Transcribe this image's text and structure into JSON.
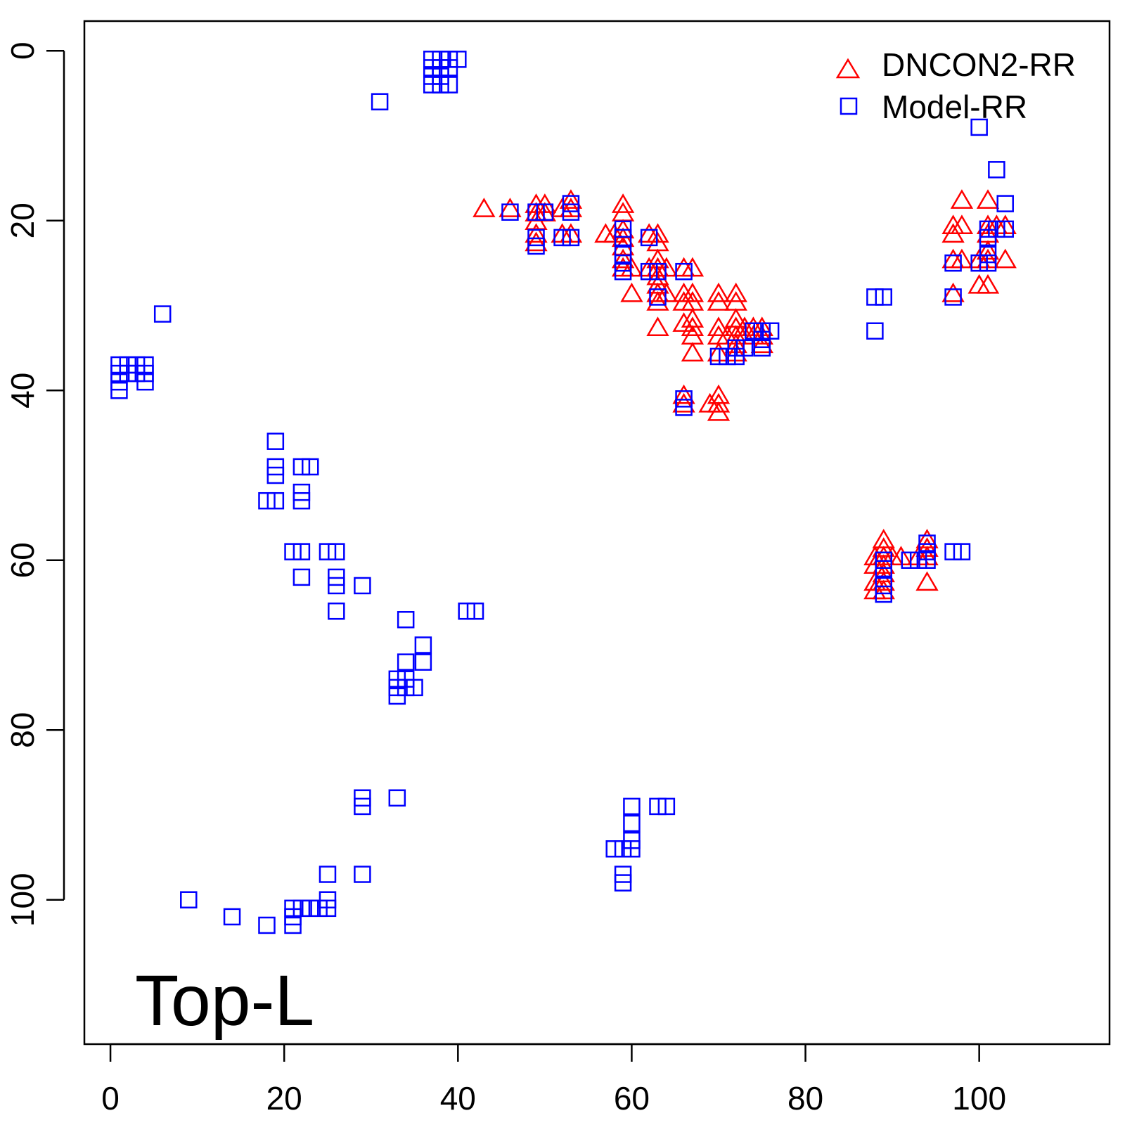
{
  "chart_data": {
    "type": "scatter",
    "annotation": "Top-L",
    "xlim": [
      -3,
      115
    ],
    "ylim": [
      -3.5,
      117
    ],
    "y_axis_inverted": true,
    "x_ticks": [
      0,
      20,
      40,
      60,
      80,
      100
    ],
    "y_ticks": [
      0,
      20,
      40,
      60,
      80,
      100
    ],
    "x_tick_labels": [
      "0",
      "20",
      "40",
      "60",
      "80",
      "100"
    ],
    "y_tick_labels": [
      "0",
      "20",
      "40",
      "60",
      "80",
      "100"
    ],
    "grid": false,
    "legend_position": "top-right",
    "series": [
      {
        "name": "DNCON2-RR",
        "marker": "triangle",
        "color": "#ff0000",
        "points": [
          [
            43,
            18.5
          ],
          [
            46,
            18.5
          ],
          [
            49,
            18
          ],
          [
            49,
            19
          ],
          [
            49,
            20
          ],
          [
            49,
            21.5
          ],
          [
            49,
            22.5
          ],
          [
            50,
            18
          ],
          [
            50,
            19
          ],
          [
            52,
            18.5
          ],
          [
            52,
            21.5
          ],
          [
            53,
            17.5
          ],
          [
            53,
            18.5
          ],
          [
            53,
            21.5
          ],
          [
            57,
            21.5
          ],
          [
            58,
            21.5
          ],
          [
            59,
            18
          ],
          [
            59,
            19
          ],
          [
            59,
            21
          ],
          [
            59,
            22
          ],
          [
            59,
            23
          ],
          [
            59,
            24.5
          ],
          [
            59,
            25.5
          ],
          [
            60,
            25.5
          ],
          [
            60,
            28.5
          ],
          [
            62,
            21.5
          ],
          [
            62,
            25.5
          ],
          [
            63,
            21.5
          ],
          [
            63,
            22.5
          ],
          [
            63,
            24.5
          ],
          [
            63,
            25.5
          ],
          [
            63,
            26.5
          ],
          [
            63,
            27.5
          ],
          [
            63,
            28.5
          ],
          [
            63,
            29.5
          ],
          [
            63,
            32.5
          ],
          [
            64,
            25.5
          ],
          [
            64,
            28.5
          ],
          [
            66,
            25.5
          ],
          [
            66,
            28.5
          ],
          [
            66,
            29.5
          ],
          [
            66,
            32
          ],
          [
            66,
            40.5
          ],
          [
            66,
            41.5
          ],
          [
            67,
            25.5
          ],
          [
            67,
            28.5
          ],
          [
            67,
            29.5
          ],
          [
            67,
            31.5
          ],
          [
            67,
            32.5
          ],
          [
            67,
            33.5
          ],
          [
            67,
            35.5
          ],
          [
            69,
            41.5
          ],
          [
            70,
            28.5
          ],
          [
            70,
            29.5
          ],
          [
            70,
            32.5
          ],
          [
            70,
            33.5
          ],
          [
            70,
            35.5
          ],
          [
            70,
            40.5
          ],
          [
            70,
            41.5
          ],
          [
            70,
            42.5
          ],
          [
            71,
            33.5
          ],
          [
            72,
            28.5
          ],
          [
            72,
            29.5
          ],
          [
            72,
            31.5
          ],
          [
            72,
            32.5
          ],
          [
            72,
            33.5
          ],
          [
            72,
            34.5
          ],
          [
            72,
            35.5
          ],
          [
            73,
            32.5
          ],
          [
            73,
            33.5
          ],
          [
            74,
            32.5
          ],
          [
            74,
            33.5
          ],
          [
            75,
            32.5
          ],
          [
            75,
            33.5
          ],
          [
            75,
            34.5
          ],
          [
            88,
            59.5
          ],
          [
            88,
            60.5
          ],
          [
            88,
            62.5
          ],
          [
            88,
            63.5
          ],
          [
            89,
            57.5
          ],
          [
            89,
            58.5
          ],
          [
            89,
            59.5
          ],
          [
            89,
            60.5
          ],
          [
            89,
            61.5
          ],
          [
            89,
            62.5
          ],
          [
            89,
            63.5
          ],
          [
            90,
            59.5
          ],
          [
            91,
            59.5
          ],
          [
            93,
            59.5
          ],
          [
            94,
            57.5
          ],
          [
            94,
            58.5
          ],
          [
            94,
            59.5
          ],
          [
            94,
            62.5
          ],
          [
            97,
            20.5
          ],
          [
            97,
            21.5
          ],
          [
            97,
            24.5
          ],
          [
            97,
            28.5
          ],
          [
            98,
            17.5
          ],
          [
            98,
            20.5
          ],
          [
            98,
            24.5
          ],
          [
            100,
            24.5
          ],
          [
            100,
            27.5
          ],
          [
            101,
            17.5
          ],
          [
            101,
            20.5
          ],
          [
            101,
            21.5
          ],
          [
            101,
            23.5
          ],
          [
            101,
            24.5
          ],
          [
            101,
            27.5
          ],
          [
            102,
            20.5
          ],
          [
            103,
            20.5
          ],
          [
            103,
            24.5
          ]
        ]
      },
      {
        "name": "Model-RR",
        "marker": "square",
        "color": "#0000ff",
        "points": [
          [
            37,
            1
          ],
          [
            37,
            2
          ],
          [
            37,
            3
          ],
          [
            37,
            4
          ],
          [
            38,
            1
          ],
          [
            38,
            2
          ],
          [
            38,
            3
          ],
          [
            38,
            4
          ],
          [
            39,
            1
          ],
          [
            39,
            2
          ],
          [
            39,
            4
          ],
          [
            40,
            1
          ],
          [
            31,
            6
          ],
          [
            1,
            37
          ],
          [
            1,
            38
          ],
          [
            1,
            39
          ],
          [
            1,
            40
          ],
          [
            2,
            37
          ],
          [
            2,
            38
          ],
          [
            3,
            37
          ],
          [
            3,
            38
          ],
          [
            4,
            37
          ],
          [
            4,
            38
          ],
          [
            4,
            39
          ],
          [
            6,
            31
          ],
          [
            19,
            46
          ],
          [
            19,
            49
          ],
          [
            19,
            50
          ],
          [
            18,
            53
          ],
          [
            19,
            53
          ],
          [
            22,
            49
          ],
          [
            23,
            49
          ],
          [
            22,
            52
          ],
          [
            22,
            53
          ],
          [
            21,
            59
          ],
          [
            22,
            59
          ],
          [
            22,
            62
          ],
          [
            25,
            59
          ],
          [
            26,
            59
          ],
          [
            26,
            62
          ],
          [
            26,
            63
          ],
          [
            26,
            66
          ],
          [
            29,
            63
          ],
          [
            34,
            67
          ],
          [
            36,
            70
          ],
          [
            34,
            72
          ],
          [
            36,
            72
          ],
          [
            33,
            74
          ],
          [
            34,
            74
          ],
          [
            33,
            75
          ],
          [
            34,
            75
          ],
          [
            35,
            75
          ],
          [
            33,
            76
          ],
          [
            41,
            66
          ],
          [
            42,
            66
          ],
          [
            29,
            88
          ],
          [
            29,
            89
          ],
          [
            33,
            88
          ],
          [
            29,
            97
          ],
          [
            25,
            97
          ],
          [
            25,
            100
          ],
          [
            25,
            101
          ],
          [
            24,
            101
          ],
          [
            23,
            101
          ],
          [
            22,
            101
          ],
          [
            21,
            101
          ],
          [
            21,
            102
          ],
          [
            21,
            103
          ],
          [
            18,
            103
          ],
          [
            14,
            102
          ],
          [
            9,
            100
          ],
          [
            60,
            89
          ],
          [
            60,
            91
          ],
          [
            60,
            93
          ],
          [
            60,
            94
          ],
          [
            59,
            94
          ],
          [
            58,
            94
          ],
          [
            59,
            97
          ],
          [
            59,
            98
          ],
          [
            63,
            89
          ],
          [
            64,
            89
          ],
          [
            46,
            19
          ],
          [
            49,
            19
          ],
          [
            49,
            22
          ],
          [
            49,
            23
          ],
          [
            50,
            19
          ],
          [
            52,
            22
          ],
          [
            53,
            18
          ],
          [
            53,
            19
          ],
          [
            53,
            22
          ],
          [
            59,
            21
          ],
          [
            59,
            22
          ],
          [
            59,
            24
          ],
          [
            59,
            25
          ],
          [
            59,
            26
          ],
          [
            62,
            22
          ],
          [
            62,
            26
          ],
          [
            63,
            26
          ],
          [
            63,
            29
          ],
          [
            66,
            26
          ],
          [
            66,
            41
          ],
          [
            66,
            42
          ],
          [
            70,
            36
          ],
          [
            71,
            36
          ],
          [
            72,
            36
          ],
          [
            72,
            35
          ],
          [
            73,
            35
          ],
          [
            74,
            33
          ],
          [
            75,
            33
          ],
          [
            75,
            34
          ],
          [
            75,
            35
          ],
          [
            76,
            33
          ],
          [
            88,
            29
          ],
          [
            89,
            29
          ],
          [
            88,
            33
          ],
          [
            89,
            60
          ],
          [
            89,
            61
          ],
          [
            89,
            63
          ],
          [
            89,
            64
          ],
          [
            92,
            60
          ],
          [
            93,
            60
          ],
          [
            94,
            58
          ],
          [
            94,
            59
          ],
          [
            94,
            60
          ],
          [
            97,
            59
          ],
          [
            98,
            59
          ],
          [
            100,
            9
          ],
          [
            102,
            14
          ],
          [
            103,
            18
          ],
          [
            97,
            25
          ],
          [
            97,
            29
          ],
          [
            100,
            25
          ],
          [
            101,
            21
          ],
          [
            101,
            22
          ],
          [
            101,
            24
          ],
          [
            101,
            25
          ],
          [
            102,
            21
          ],
          [
            103,
            21
          ]
        ]
      }
    ]
  }
}
